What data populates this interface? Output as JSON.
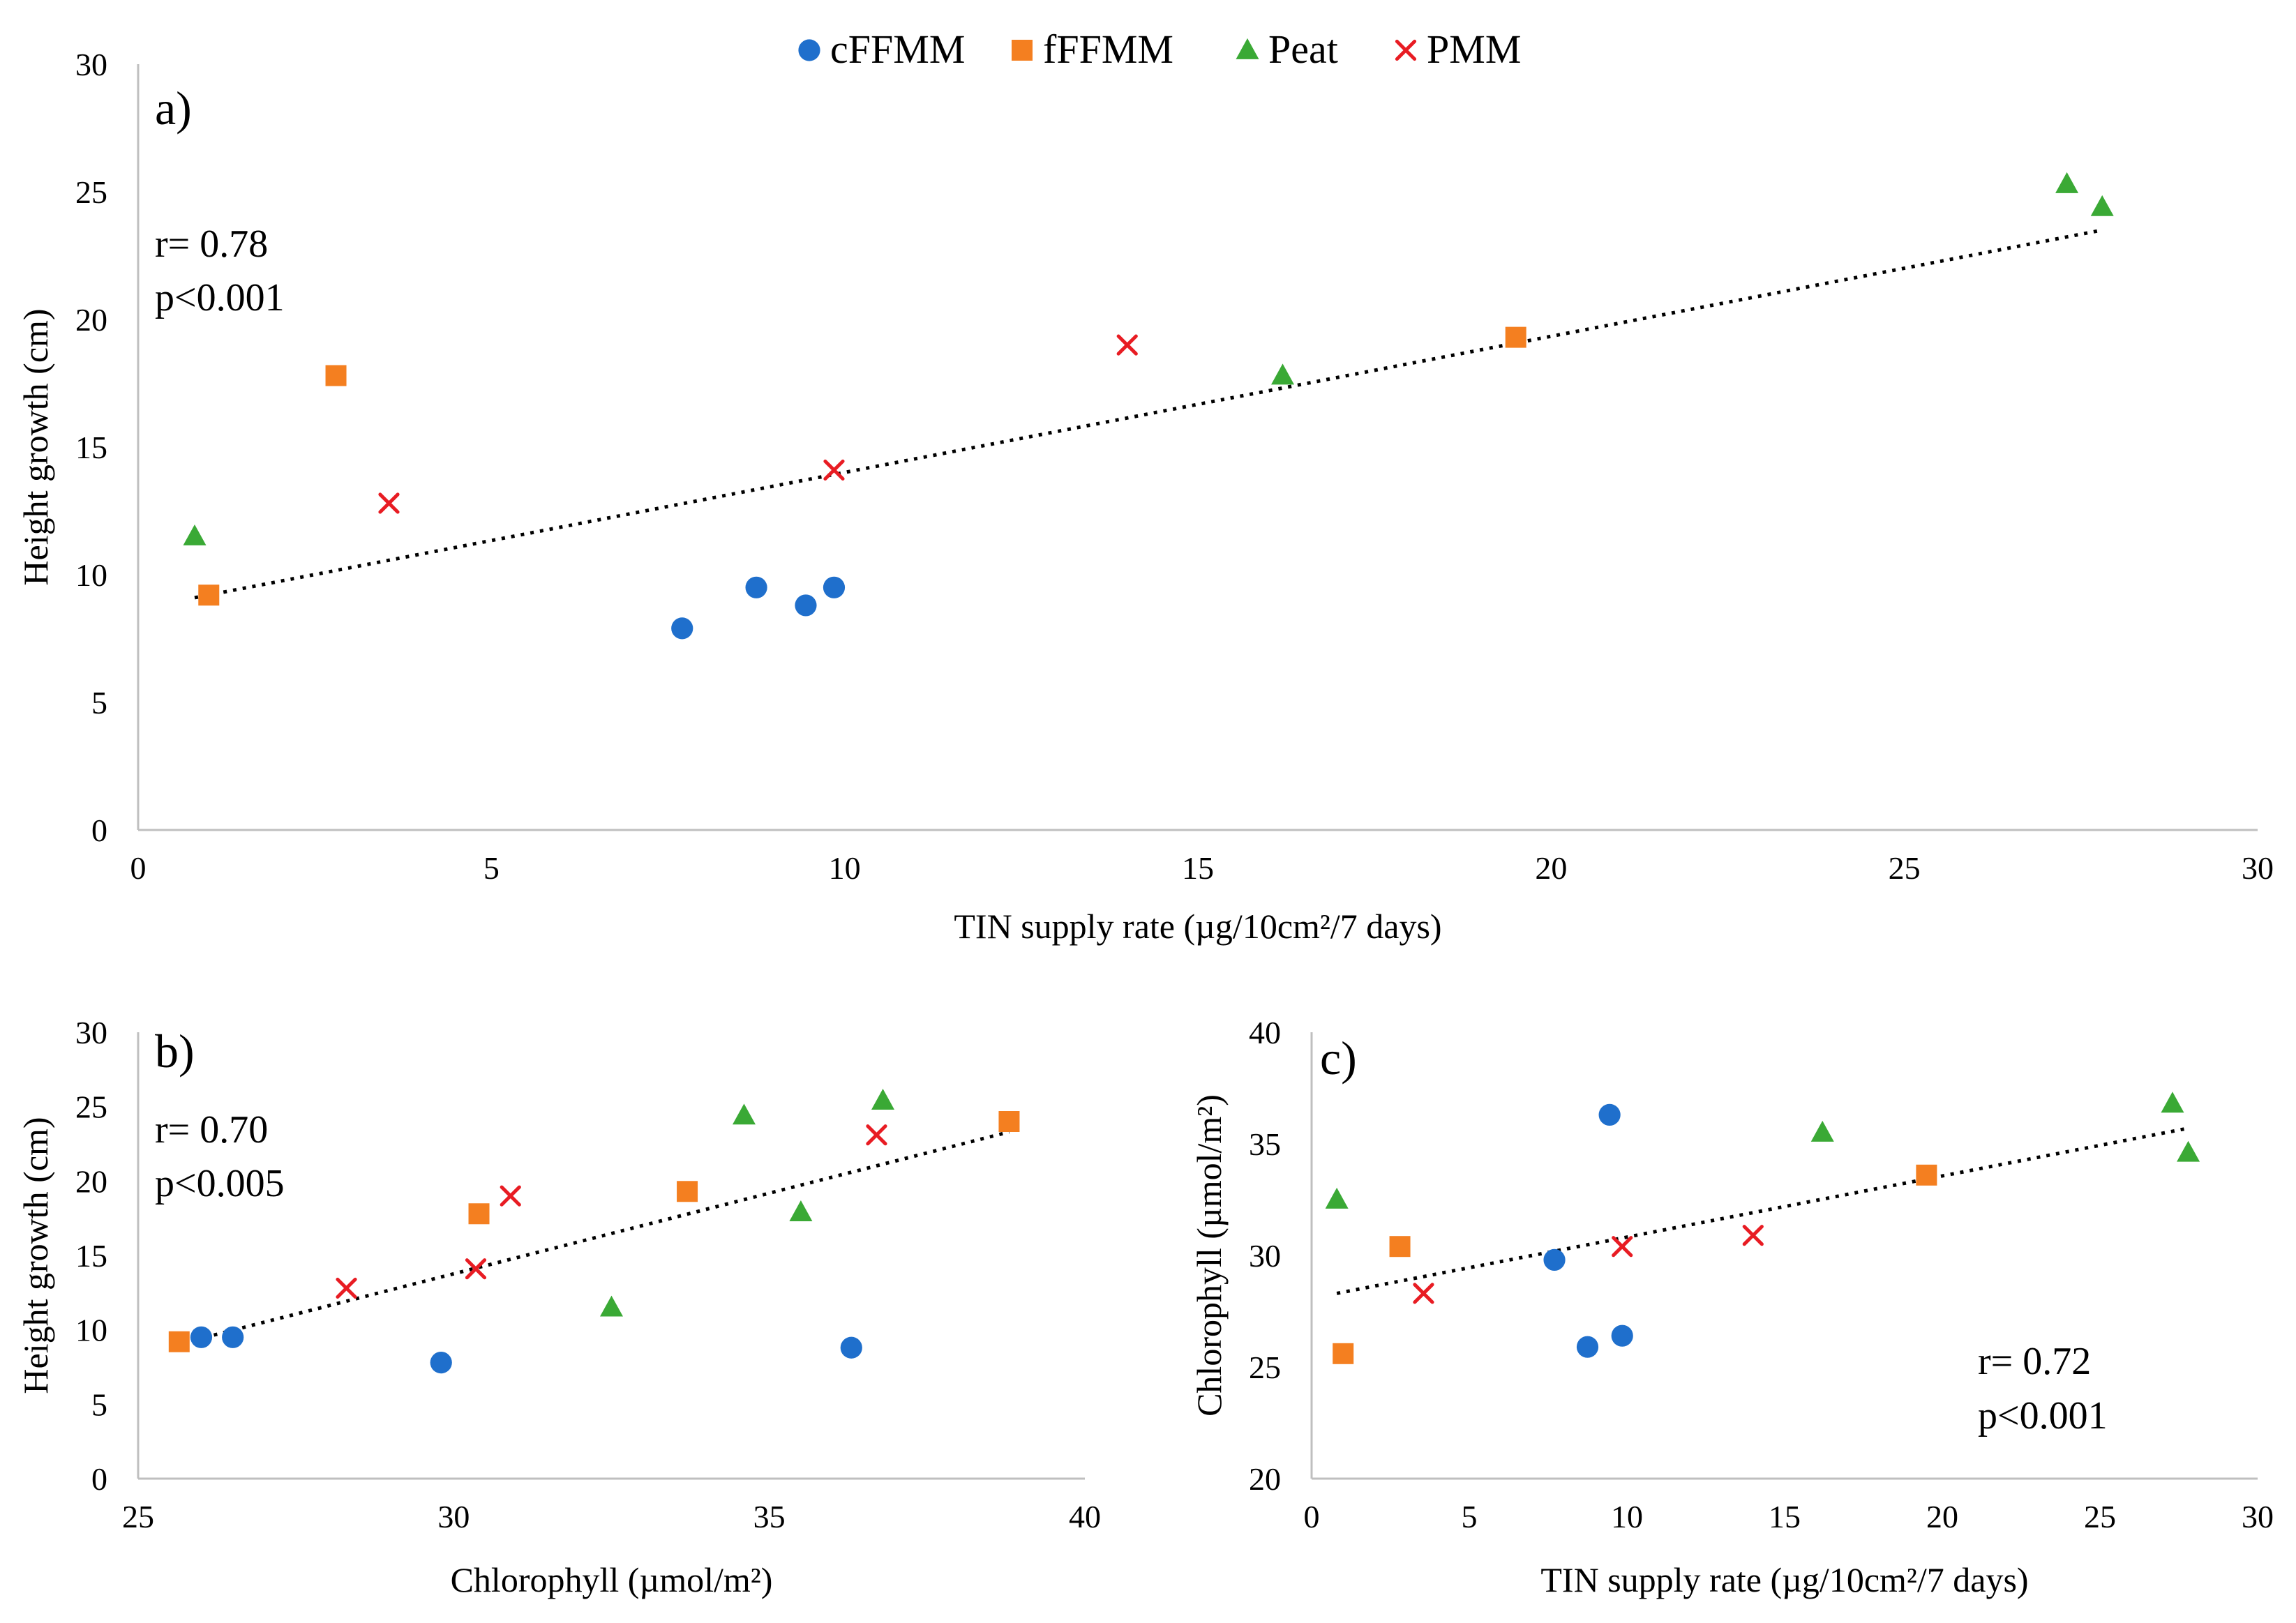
{
  "legend": [
    {
      "name": "cFFMM",
      "marker": "circle",
      "color": "#1f6fcc"
    },
    {
      "name": "fFFMM",
      "marker": "square",
      "color": "#f47f20"
    },
    {
      "name": "Peat",
      "marker": "triangle",
      "color": "#3aa935"
    },
    {
      "name": "PMM",
      "marker": "x",
      "color": "#e81c23"
    }
  ],
  "chart_data": [
    {
      "type": "scatter",
      "panel_label": "a)",
      "stats": {
        "r": "r= 0.78",
        "p": "p<0.001"
      },
      "xlabel": "TIN supply rate (µg/10cm²/7 days)",
      "ylabel": "Height growth (cm)",
      "xlim": [
        0,
        30
      ],
      "ylim": [
        0,
        30
      ],
      "xticks": [
        0,
        5,
        10,
        15,
        20,
        25,
        30
      ],
      "yticks": [
        0,
        5,
        10,
        15,
        20,
        25,
        30
      ],
      "series": [
        {
          "name": "cFFMM",
          "points": [
            [
              7.7,
              7.9
            ],
            [
              8.75,
              9.5
            ],
            [
              9.45,
              8.8
            ],
            [
              9.85,
              9.5
            ]
          ]
        },
        {
          "name": "fFFMM",
          "points": [
            [
              1.0,
              9.2
            ],
            [
              2.8,
              17.8
            ],
            [
              19.5,
              19.3
            ]
          ]
        },
        {
          "name": "Peat",
          "points": [
            [
              0.8,
              11.5
            ],
            [
              16.2,
              17.8
            ],
            [
              27.3,
              25.3
            ],
            [
              27.8,
              24.4
            ]
          ]
        },
        {
          "name": "PMM",
          "points": [
            [
              3.55,
              12.8
            ],
            [
              9.85,
              14.1
            ],
            [
              14.0,
              19.0
            ]
          ]
        }
      ],
      "trendline": {
        "x": [
          0.8,
          27.8
        ],
        "y": [
          9.1,
          23.5
        ]
      }
    },
    {
      "type": "scatter",
      "panel_label": "b)",
      "stats": {
        "r": "r= 0.70",
        "p": "p<0.005"
      },
      "xlabel": "Chlorophyll (µmol/m²)",
      "ylabel": "Height growth (cm)",
      "xlim": [
        25,
        40
      ],
      "ylim": [
        0,
        30
      ],
      "xticks": [
        25,
        30,
        35,
        40
      ],
      "yticks": [
        0,
        5,
        10,
        15,
        20,
        25,
        30
      ],
      "series": [
        {
          "name": "cFFMM",
          "points": [
            [
              26.0,
              9.5
            ],
            [
              26.5,
              9.5
            ],
            [
              29.8,
              7.8
            ],
            [
              36.3,
              8.8
            ]
          ]
        },
        {
          "name": "fFFMM",
          "points": [
            [
              25.65,
              9.2
            ],
            [
              30.4,
              17.8
            ],
            [
              33.7,
              19.3
            ],
            [
              38.8,
              24.0
            ]
          ]
        },
        {
          "name": "Peat",
          "points": [
            [
              32.5,
              11.5
            ],
            [
              34.6,
              24.4
            ],
            [
              35.5,
              17.9
            ],
            [
              36.8,
              25.4
            ]
          ]
        },
        {
          "name": "PMM",
          "points": [
            [
              28.3,
              12.8
            ],
            [
              30.35,
              14.1
            ],
            [
              30.9,
              19.0
            ],
            [
              36.7,
              23.1
            ]
          ]
        }
      ],
      "trendline": {
        "x": [
          25.6,
          38.8
        ],
        "y": [
          9.0,
          23.3
        ]
      }
    },
    {
      "type": "scatter",
      "panel_label": "c)",
      "stats": {
        "r": "r= 0.72",
        "p": "p<0.001"
      },
      "xlabel": "TIN supply rate (µg/10cm²/7 days)",
      "ylabel": "Chlorophyll (µmol/m²)",
      "xlim": [
        0,
        30
      ],
      "ylim": [
        20,
        40
      ],
      "xticks": [
        0,
        5,
        10,
        15,
        20,
        25,
        30
      ],
      "yticks": [
        20,
        25,
        30,
        35,
        40
      ],
      "series": [
        {
          "name": "cFFMM",
          "points": [
            [
              7.7,
              29.8
            ],
            [
              8.75,
              25.9
            ],
            [
              9.45,
              36.3
            ],
            [
              9.85,
              26.4
            ]
          ]
        },
        {
          "name": "fFFMM",
          "points": [
            [
              1.0,
              25.6
            ],
            [
              2.8,
              30.4
            ],
            [
              19.5,
              33.6
            ]
          ]
        },
        {
          "name": "Peat",
          "points": [
            [
              0.8,
              32.5
            ],
            [
              16.2,
              35.5
            ],
            [
              27.3,
              36.8
            ],
            [
              27.8,
              34.6
            ]
          ]
        },
        {
          "name": "PMM",
          "points": [
            [
              3.55,
              28.3
            ],
            [
              9.85,
              30.4
            ],
            [
              14.0,
              30.9
            ]
          ]
        }
      ],
      "trendline": {
        "x": [
          0.8,
          27.8
        ],
        "y": [
          28.3,
          35.7
        ]
      }
    }
  ]
}
